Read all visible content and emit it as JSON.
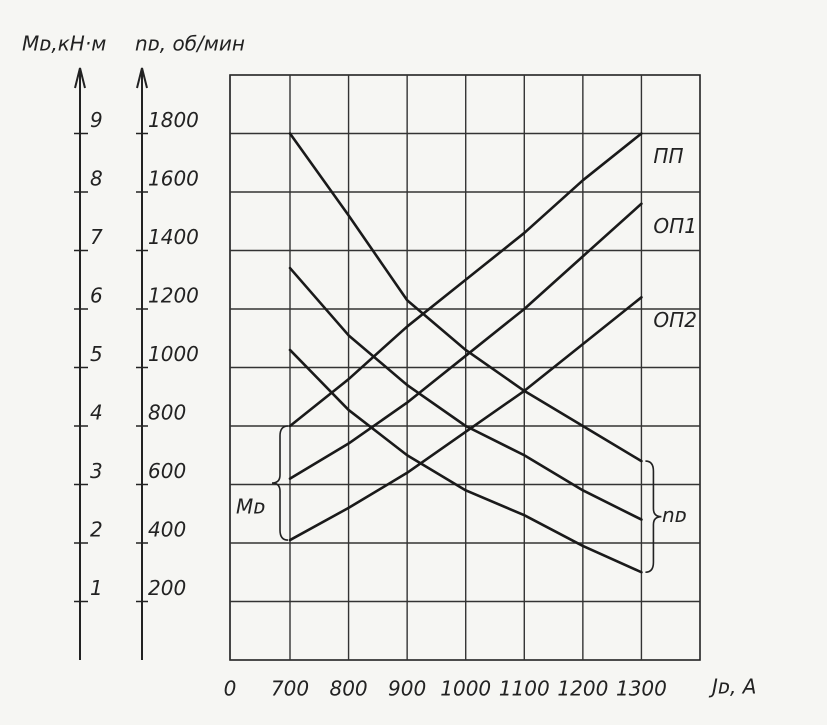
{
  "chart_data": {
    "type": "line",
    "xlabel": "Jᴅ, A",
    "ylabel": "Mᴅ,кН·м",
    "y2label": "nᴅ, об/мин",
    "x": [
      700,
      800,
      900,
      1000,
      1100,
      1200,
      1300
    ],
    "xlim": [
      0,
      1400
    ],
    "axis_break": [
      0,
      700
    ],
    "xticks": [
      0,
      700,
      800,
      900,
      1000,
      1100,
      1200,
      1300
    ],
    "ylim": [
      0,
      10
    ],
    "yticks": [
      1,
      2,
      3,
      4,
      5,
      6,
      7,
      8,
      9
    ],
    "y2lim": [
      0,
      2000
    ],
    "y2ticks": [
      200,
      400,
      600,
      800,
      1000,
      1200,
      1400,
      1600,
      1800
    ],
    "grid": true,
    "series": [
      {
        "name": "ПП",
        "color": "#1a1a1a",
        "values": [
          4.0,
          4.8,
          5.7,
          6.5,
          7.3,
          8.2,
          9.0
        ]
      },
      {
        "name": "ОП1",
        "color": "#1a1a1a",
        "values": [
          3.1,
          3.7,
          4.4,
          5.2,
          6.0,
          6.9,
          7.8
        ]
      },
      {
        "name": "ОП2",
        "color": "#1a1a1a",
        "values": [
          2.05,
          2.6,
          3.2,
          3.9,
          4.6,
          5.4,
          6.2
        ]
      },
      {
        "color": "#1a1a1a",
        "axis": "y2",
        "values": [
          1800,
          1520,
          1230,
          1060,
          920,
          800,
          680
        ]
      },
      {
        "color": "#1a1a1a",
        "axis": "y2",
        "values": [
          1340,
          1110,
          940,
          800,
          700,
          580,
          480
        ]
      },
      {
        "color": "#1a1a1a",
        "axis": "y2",
        "values": [
          1060,
          855,
          700,
          580,
          495,
          390,
          300
        ]
      }
    ],
    "annotations": [
      {
        "text": "Mᴅ"
      },
      {
        "text": "nᴅ"
      }
    ]
  }
}
